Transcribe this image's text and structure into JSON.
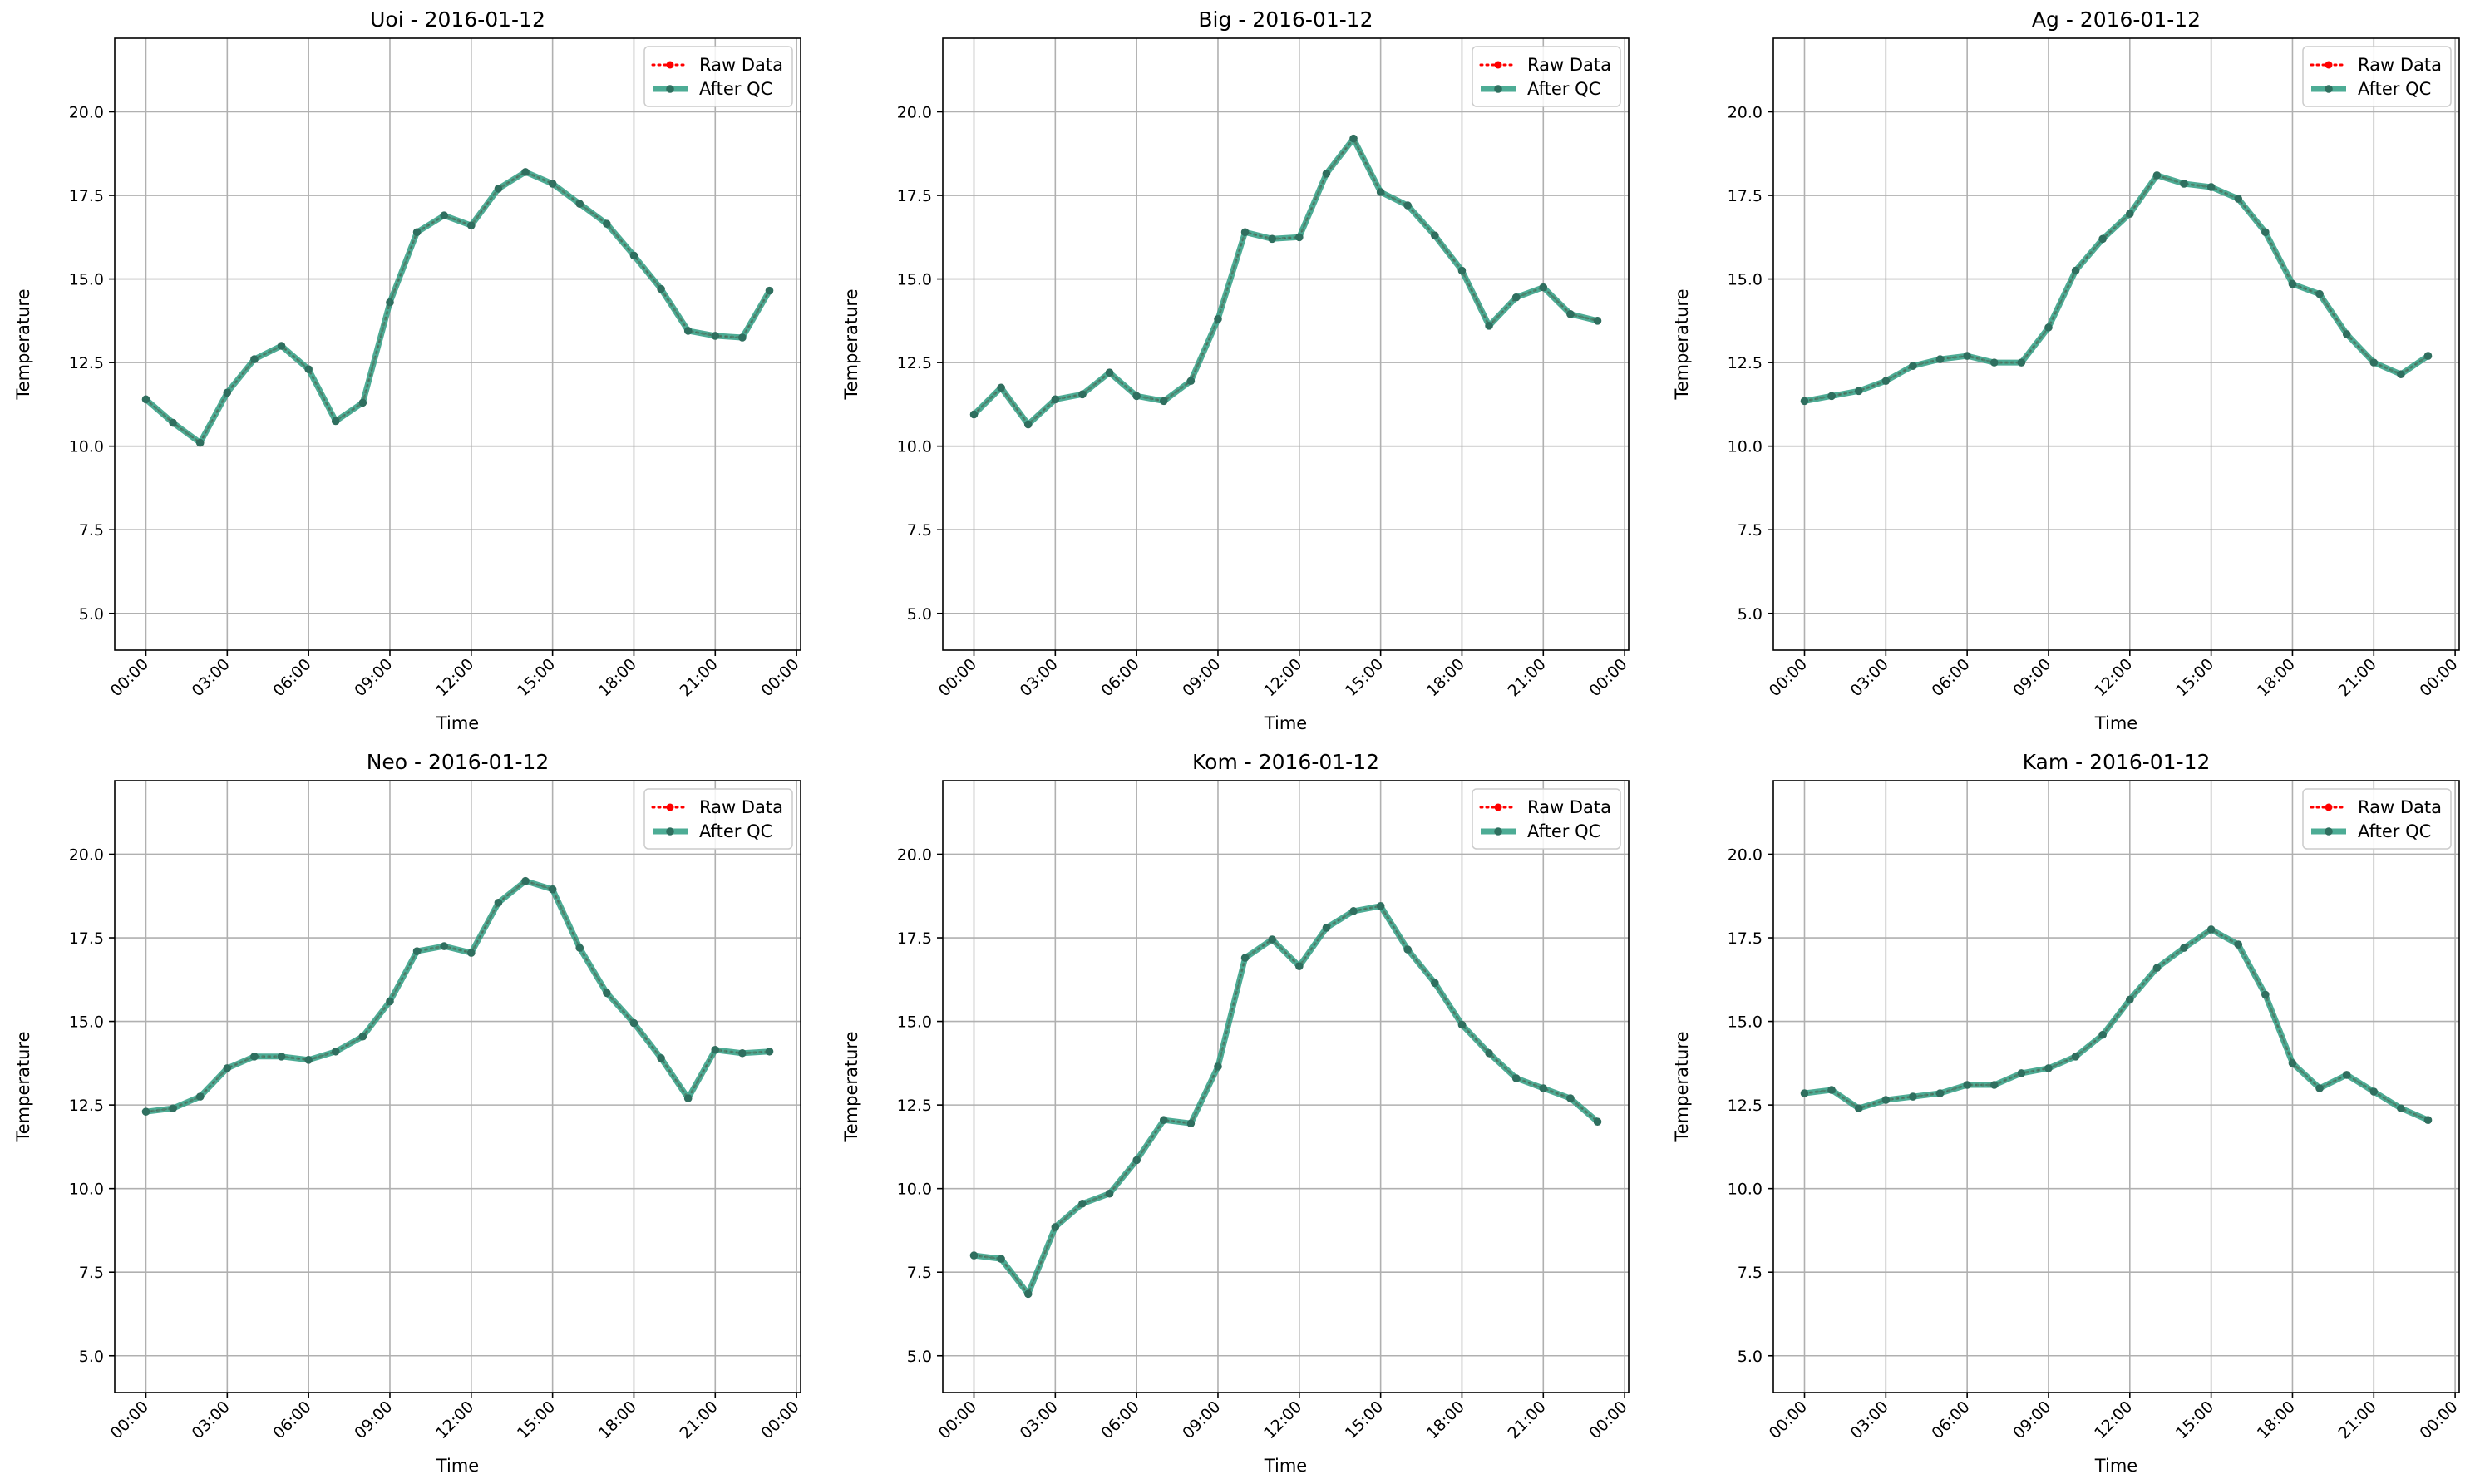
{
  "figure": {
    "background": "#ffffff"
  },
  "style": {
    "raw_color": "#ff0000",
    "qc_color": "#2e9e82",
    "grid_color": "#b0b0b0",
    "point_color": "#2f6f5f"
  },
  "chart_data": [
    {
      "type": "line",
      "title": "Uoi - 2016-01-12",
      "xlabel": "Time",
      "ylabel": "Temperature",
      "ylim": [
        3.9,
        22.2
      ],
      "yticks": [
        "5.0",
        "7.5",
        "10.0",
        "12.5",
        "15.0",
        "17.5",
        "20.0"
      ],
      "xlim": [
        -1.15,
        24.15
      ],
      "xtick_hours": [
        0,
        3,
        6,
        9,
        12,
        15,
        18,
        21,
        24
      ],
      "xticks": [
        "00:00",
        "03:00",
        "06:00",
        "09:00",
        "12:00",
        "15:00",
        "18:00",
        "21:00",
        "00:00"
      ],
      "grid": true,
      "legend": "top-right",
      "series": [
        {
          "name": "Raw Data",
          "style": "dotted-red-markers",
          "x": [
            0,
            1,
            2,
            3,
            4,
            5,
            6,
            7,
            8,
            9,
            10,
            11,
            12,
            13,
            14,
            15,
            16,
            17,
            18,
            19,
            20,
            21,
            22,
            23
          ],
          "y": [
            11.4,
            10.7,
            10.1,
            11.6,
            12.6,
            13.0,
            12.3,
            10.75,
            11.3,
            14.3,
            16.4,
            16.9,
            16.6,
            17.7,
            18.2,
            17.85,
            17.25,
            16.65,
            15.7,
            14.7,
            13.45,
            13.3,
            13.25,
            14.65
          ]
        },
        {
          "name": "After QC",
          "style": "thick-green-markers",
          "x": [
            0,
            1,
            2,
            3,
            4,
            5,
            6,
            7,
            8,
            9,
            10,
            11,
            12,
            13,
            14,
            15,
            16,
            17,
            18,
            19,
            20,
            21,
            22,
            23
          ],
          "y": [
            11.4,
            10.7,
            10.1,
            11.6,
            12.6,
            13.0,
            12.3,
            10.75,
            11.3,
            14.3,
            16.4,
            16.9,
            16.6,
            17.7,
            18.2,
            17.85,
            17.25,
            16.65,
            15.7,
            14.7,
            13.45,
            13.3,
            13.25,
            14.65
          ]
        }
      ]
    },
    {
      "type": "line",
      "title": "Big - 2016-01-12",
      "xlabel": "Time",
      "ylabel": "Temperature",
      "ylim": [
        3.9,
        22.2
      ],
      "yticks": [
        "5.0",
        "7.5",
        "10.0",
        "12.5",
        "15.0",
        "17.5",
        "20.0"
      ],
      "xlim": [
        -1.15,
        24.15
      ],
      "xtick_hours": [
        0,
        3,
        6,
        9,
        12,
        15,
        18,
        21,
        24
      ],
      "xticks": [
        "00:00",
        "03:00",
        "06:00",
        "09:00",
        "12:00",
        "15:00",
        "18:00",
        "21:00",
        "00:00"
      ],
      "grid": true,
      "legend": "top-right",
      "series": [
        {
          "name": "Raw Data",
          "style": "dotted-red-markers",
          "x": [
            0,
            1,
            2,
            3,
            4,
            5,
            6,
            7,
            8,
            9,
            10,
            11,
            12,
            13,
            14,
            15,
            16,
            17,
            18,
            19,
            20,
            21,
            22,
            23
          ],
          "y": [
            10.95,
            11.75,
            10.65,
            11.4,
            11.55,
            12.2,
            11.5,
            11.35,
            11.95,
            13.8,
            16.4,
            16.2,
            16.25,
            18.15,
            19.2,
            17.6,
            17.2,
            16.3,
            15.25,
            13.6,
            14.45,
            14.75,
            13.95,
            13.75
          ]
        },
        {
          "name": "After QC",
          "style": "thick-green-markers",
          "x": [
            0,
            1,
            2,
            3,
            4,
            5,
            6,
            7,
            8,
            9,
            10,
            11,
            12,
            13,
            14,
            15,
            16,
            17,
            18,
            19,
            20,
            21,
            22,
            23
          ],
          "y": [
            10.95,
            11.75,
            10.65,
            11.4,
            11.55,
            12.2,
            11.5,
            11.35,
            11.95,
            13.8,
            16.4,
            16.2,
            16.25,
            18.15,
            19.2,
            17.6,
            17.2,
            16.3,
            15.25,
            13.6,
            14.45,
            14.75,
            13.95,
            13.75
          ]
        }
      ]
    },
    {
      "type": "line",
      "title": "Ag - 2016-01-12",
      "xlabel": "Time",
      "ylabel": "Temperature",
      "ylim": [
        3.9,
        22.2
      ],
      "yticks": [
        "5.0",
        "7.5",
        "10.0",
        "12.5",
        "15.0",
        "17.5",
        "20.0"
      ],
      "xlim": [
        -1.15,
        24.15
      ],
      "xtick_hours": [
        0,
        3,
        6,
        9,
        12,
        15,
        18,
        21,
        24
      ],
      "xticks": [
        "00:00",
        "03:00",
        "06:00",
        "09:00",
        "12:00",
        "15:00",
        "18:00",
        "21:00",
        "00:00"
      ],
      "grid": true,
      "legend": "top-right",
      "series": [
        {
          "name": "Raw Data",
          "style": "dotted-red-markers",
          "x": [
            0,
            1,
            2,
            3,
            4,
            5,
            6,
            7,
            8,
            9,
            10,
            11,
            12,
            13,
            14,
            15,
            16,
            17,
            18,
            19,
            20,
            21,
            22,
            23
          ],
          "y": [
            11.35,
            11.5,
            11.65,
            11.95,
            12.4,
            12.6,
            12.7,
            12.5,
            12.5,
            13.55,
            15.25,
            16.2,
            16.95,
            18.1,
            17.85,
            17.75,
            17.4,
            16.4,
            14.85,
            14.55,
            13.35,
            12.5,
            12.15,
            12.7
          ]
        },
        {
          "name": "After QC",
          "style": "thick-green-markers",
          "x": [
            0,
            1,
            2,
            3,
            4,
            5,
            6,
            7,
            8,
            9,
            10,
            11,
            12,
            13,
            14,
            15,
            16,
            17,
            18,
            19,
            20,
            21,
            22,
            23
          ],
          "y": [
            11.35,
            11.5,
            11.65,
            11.95,
            12.4,
            12.6,
            12.7,
            12.5,
            12.5,
            13.55,
            15.25,
            16.2,
            16.95,
            18.1,
            17.85,
            17.75,
            17.4,
            16.4,
            14.85,
            14.55,
            13.35,
            12.5,
            12.15,
            12.7
          ]
        }
      ]
    },
    {
      "type": "line",
      "title": "Neo - 2016-01-12",
      "xlabel": "Time",
      "ylabel": "Temperature",
      "ylim": [
        3.9,
        22.2
      ],
      "yticks": [
        "5.0",
        "7.5",
        "10.0",
        "12.5",
        "15.0",
        "17.5",
        "20.0"
      ],
      "xlim": [
        -1.15,
        24.15
      ],
      "xtick_hours": [
        0,
        3,
        6,
        9,
        12,
        15,
        18,
        21,
        24
      ],
      "xticks": [
        "00:00",
        "03:00",
        "06:00",
        "09:00",
        "12:00",
        "15:00",
        "18:00",
        "21:00",
        "00:00"
      ],
      "grid": true,
      "legend": "top-right",
      "series": [
        {
          "name": "Raw Data",
          "style": "dotted-red-markers",
          "x": [
            0,
            1,
            2,
            3,
            4,
            5,
            6,
            7,
            8,
            9,
            10,
            11,
            12,
            13,
            14,
            15,
            16,
            17,
            18,
            19,
            20,
            21,
            22,
            23
          ],
          "y": [
            12.3,
            12.4,
            12.75,
            13.6,
            13.95,
            13.95,
            13.85,
            14.1,
            14.55,
            15.6,
            17.1,
            17.25,
            17.05,
            18.55,
            19.2,
            18.95,
            17.2,
            15.85,
            14.95,
            13.9,
            12.7,
            14.15,
            14.05,
            14.1
          ]
        },
        {
          "name": "After QC",
          "style": "thick-green-markers",
          "x": [
            0,
            1,
            2,
            3,
            4,
            5,
            6,
            7,
            8,
            9,
            10,
            11,
            12,
            13,
            14,
            15,
            16,
            17,
            18,
            19,
            20,
            21,
            22,
            23
          ],
          "y": [
            12.3,
            12.4,
            12.75,
            13.6,
            13.95,
            13.95,
            13.85,
            14.1,
            14.55,
            15.6,
            17.1,
            17.25,
            17.05,
            18.55,
            19.2,
            18.95,
            17.2,
            15.85,
            14.95,
            13.9,
            12.7,
            14.15,
            14.05,
            14.1
          ]
        }
      ]
    },
    {
      "type": "line",
      "title": "Kom - 2016-01-12",
      "xlabel": "Time",
      "ylabel": "Temperature",
      "ylim": [
        3.9,
        22.2
      ],
      "yticks": [
        "5.0",
        "7.5",
        "10.0",
        "12.5",
        "15.0",
        "17.5",
        "20.0"
      ],
      "xlim": [
        -1.15,
        24.15
      ],
      "xtick_hours": [
        0,
        3,
        6,
        9,
        12,
        15,
        18,
        21,
        24
      ],
      "xticks": [
        "00:00",
        "03:00",
        "06:00",
        "09:00",
        "12:00",
        "15:00",
        "18:00",
        "21:00",
        "00:00"
      ],
      "grid": true,
      "legend": "top-right",
      "series": [
        {
          "name": "Raw Data",
          "style": "dotted-red-markers",
          "x": [
            0,
            1,
            2,
            3,
            4,
            5,
            6,
            7,
            8,
            9,
            10,
            11,
            12,
            13,
            14,
            15,
            16,
            17,
            18,
            19,
            20,
            21,
            22,
            23
          ],
          "y": [
            8.0,
            7.9,
            6.85,
            8.85,
            9.55,
            9.85,
            10.85,
            12.05,
            11.95,
            13.65,
            16.9,
            17.45,
            16.65,
            17.8,
            18.3,
            18.45,
            17.15,
            16.15,
            14.9,
            14.05,
            13.3,
            13.0,
            12.7,
            12.0
          ]
        },
        {
          "name": "After QC",
          "style": "thick-green-markers",
          "x": [
            0,
            1,
            2,
            3,
            4,
            5,
            6,
            7,
            8,
            9,
            10,
            11,
            12,
            13,
            14,
            15,
            16,
            17,
            18,
            19,
            20,
            21,
            22,
            23
          ],
          "y": [
            8.0,
            7.9,
            6.85,
            8.85,
            9.55,
            9.85,
            10.85,
            12.05,
            11.95,
            13.65,
            16.9,
            17.45,
            16.65,
            17.8,
            18.3,
            18.45,
            17.15,
            16.15,
            14.9,
            14.05,
            13.3,
            13.0,
            12.7,
            12.0
          ]
        }
      ]
    },
    {
      "type": "line",
      "title": "Kam - 2016-01-12",
      "xlabel": "Time",
      "ylabel": "Temperature",
      "ylim": [
        3.9,
        22.2
      ],
      "yticks": [
        "5.0",
        "7.5",
        "10.0",
        "12.5",
        "15.0",
        "17.5",
        "20.0"
      ],
      "xlim": [
        -1.15,
        24.15
      ],
      "xtick_hours": [
        0,
        3,
        6,
        9,
        12,
        15,
        18,
        21,
        24
      ],
      "xticks": [
        "00:00",
        "03:00",
        "06:00",
        "09:00",
        "12:00",
        "15:00",
        "18:00",
        "21:00",
        "00:00"
      ],
      "grid": true,
      "legend": "top-right",
      "series": [
        {
          "name": "Raw Data",
          "style": "dotted-red-markers",
          "x": [
            0,
            1,
            2,
            3,
            4,
            5,
            6,
            7,
            8,
            9,
            10,
            11,
            12,
            13,
            14,
            15,
            16,
            17,
            18,
            19,
            20,
            21,
            22,
            23
          ],
          "y": [
            12.85,
            12.95,
            12.4,
            12.65,
            12.75,
            12.85,
            13.1,
            13.1,
            13.45,
            13.6,
            13.95,
            14.6,
            15.65,
            16.6,
            17.2,
            17.75,
            17.3,
            15.8,
            13.75,
            13.0,
            13.4,
            12.9,
            12.4,
            12.05
          ]
        },
        {
          "name": "After QC",
          "style": "thick-green-markers",
          "x": [
            0,
            1,
            2,
            3,
            4,
            5,
            6,
            7,
            8,
            9,
            10,
            11,
            12,
            13,
            14,
            15,
            16,
            17,
            18,
            19,
            20,
            21,
            22,
            23
          ],
          "y": [
            12.85,
            12.95,
            12.4,
            12.65,
            12.75,
            12.85,
            13.1,
            13.1,
            13.45,
            13.6,
            13.95,
            14.6,
            15.65,
            16.6,
            17.2,
            17.75,
            17.3,
            15.8,
            13.75,
            13.0,
            13.4,
            12.9,
            12.4,
            12.05
          ]
        }
      ]
    }
  ]
}
